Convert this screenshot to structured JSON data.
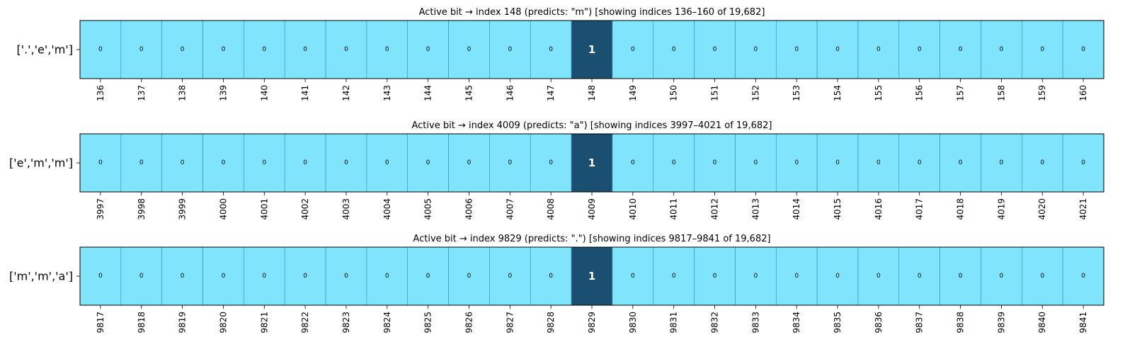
{
  "chart_data": [
    {
      "type": "heatmap",
      "title": "Active bit → index 148  (predicts: \"m\")   [showing indices 136–160 of 19,682]",
      "row_label": "['.','e','m']",
      "x": [
        136,
        137,
        138,
        139,
        140,
        141,
        142,
        143,
        144,
        145,
        146,
        147,
        148,
        149,
        150,
        151,
        152,
        153,
        154,
        155,
        156,
        157,
        158,
        159,
        160
      ],
      "values": [
        0,
        0,
        0,
        0,
        0,
        0,
        0,
        0,
        0,
        0,
        0,
        0,
        1,
        0,
        0,
        0,
        0,
        0,
        0,
        0,
        0,
        0,
        0,
        0,
        0
      ]
    },
    {
      "type": "heatmap",
      "title": "Active bit → index 4009  (predicts: \"a\")   [showing indices 3997–4021 of 19,682]",
      "row_label": "['e','m','m']",
      "x": [
        3997,
        3998,
        3999,
        4000,
        4001,
        4002,
        4003,
        4004,
        4005,
        4006,
        4007,
        4008,
        4009,
        4010,
        4011,
        4012,
        4013,
        4014,
        4015,
        4016,
        4017,
        4018,
        4019,
        4020,
        4021
      ],
      "values": [
        0,
        0,
        0,
        0,
        0,
        0,
        0,
        0,
        0,
        0,
        0,
        0,
        1,
        0,
        0,
        0,
        0,
        0,
        0,
        0,
        0,
        0,
        0,
        0,
        0
      ]
    },
    {
      "type": "heatmap",
      "title": "Active bit → index 9829  (predicts: \".\")   [showing indices 9817–9841 of 19,682]",
      "row_label": "['m','m','a']",
      "x": [
        9817,
        9818,
        9819,
        9820,
        9821,
        9822,
        9823,
        9824,
        9825,
        9826,
        9827,
        9828,
        9829,
        9830,
        9831,
        9832,
        9833,
        9834,
        9835,
        9836,
        9837,
        9838,
        9839,
        9840,
        9841
      ],
      "values": [
        0,
        0,
        0,
        0,
        0,
        0,
        0,
        0,
        0,
        0,
        0,
        0,
        1,
        0,
        0,
        0,
        0,
        0,
        0,
        0,
        0,
        0,
        0,
        0,
        0
      ]
    }
  ],
  "colors": {
    "inactive": "#80e5fc",
    "active": "#1b4f72",
    "cell_border": "#2a8fc0",
    "frame": "#000000"
  }
}
